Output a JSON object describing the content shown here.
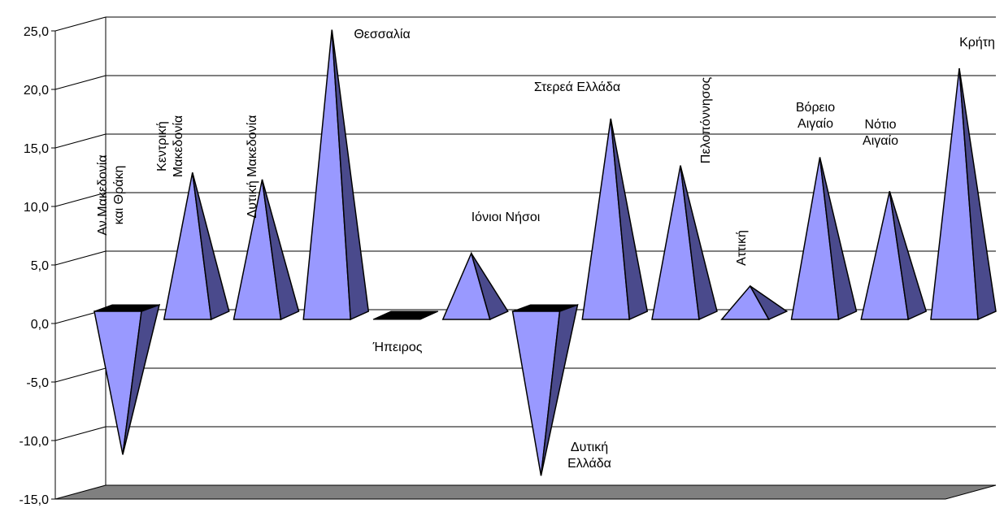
{
  "chart_data": {
    "type": "bar",
    "style": "3d-pyramid",
    "title": "",
    "xlabel": "",
    "ylabel": "",
    "ylim": [
      -15,
      25
    ],
    "y_ticks": [
      "25,0",
      "20,0",
      "15,0",
      "10,0",
      "5,0",
      "0,0",
      "-5,0",
      "-10,0",
      "-15,0"
    ],
    "grid": true,
    "colors": {
      "front": "#9999ff",
      "side": "#4a4a8c",
      "floor": "#808080",
      "grid": "#000000"
    },
    "categories": [
      "Αν.Μακεδονία και Θράκη",
      "Κεντρική Μακεδονία",
      "Δυτική Μακεδονία",
      "Θεσσαλία",
      "Ήπειρος",
      "Ιόνιοι Νήσοι",
      "Δυτική Ελλάδα",
      "Στερεά Ελλάδα",
      "Πελοπόννησος",
      "Αττική",
      "Βόρειο Αιγαίο",
      "Νότιο Αιγαίο",
      "Κρήτη"
    ],
    "values": [
      -11.2,
      12.9,
      12.3,
      25.1,
      0.0,
      6.0,
      -13.0,
      17.5,
      13.5,
      3.2,
      14.2,
      11.3,
      21.8
    ]
  }
}
